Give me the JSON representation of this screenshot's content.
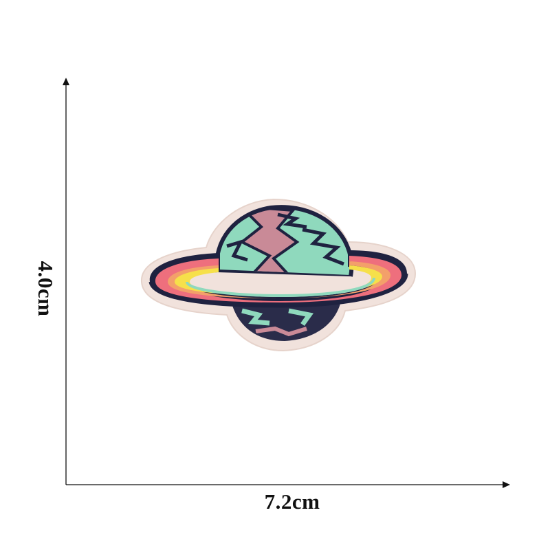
{
  "dimensions": {
    "width_label": "7.2cm",
    "height_label": "4.0cm"
  },
  "product": {
    "icon": "saturn-planet-embroidered-patch",
    "colors": {
      "planet_mint": "#8fd9bd",
      "planet_pink": "#c98a97",
      "outline_navy": "#1f2240",
      "ring_pink": "#ee6f7d",
      "ring_orange": "#f3a06a",
      "ring_yellow": "#f6e04a",
      "patch_border": "#f1e2dc"
    }
  }
}
